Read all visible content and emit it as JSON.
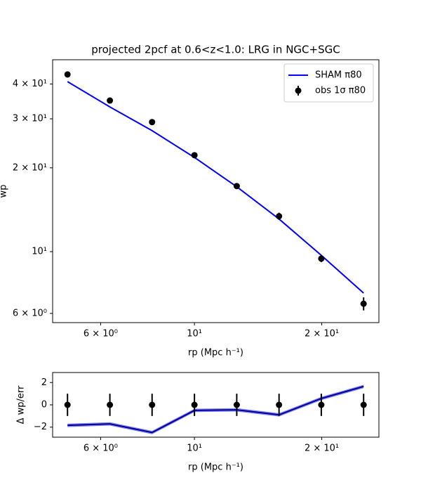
{
  "chart_data": [
    {
      "type": "errorbar",
      "title": "projected 2pcf at 0.6<z<1.0: LRG in NGC+SGC",
      "xlabel": "rp (Mpc h⁻¹)",
      "ylabel": "wp",
      "xlog": true,
      "ylog": true,
      "xlim": [
        4.62,
        27.3
      ],
      "ylim": [
        5.56,
        48.9
      ],
      "xticks": [
        {
          "value": 6,
          "label": "6 × 10⁰"
        },
        {
          "value": 10,
          "label": "10¹"
        },
        {
          "value": 20,
          "label": "2 × 10¹"
        }
      ],
      "yticks": [
        {
          "value": 6,
          "label": "6 × 10⁰"
        },
        {
          "value": 10,
          "label": "10¹"
        },
        {
          "value": 20,
          "label": "2 × 10¹"
        },
        {
          "value": 30,
          "label": "3 × 10¹"
        },
        {
          "value": 40,
          "label": "4 × 10¹"
        }
      ],
      "legend": "upper right",
      "x": [
        5.01,
        6.31,
        7.94,
        10,
        12.59,
        15.85,
        19.95,
        25.12
      ],
      "series": [
        {
          "name": "SHAM π80",
          "style": "line",
          "color": "#0000ff",
          "values": [
            40.8,
            33.1,
            27.2,
            21.8,
            17.1,
            13.1,
            9.7,
            7.1
          ]
        },
        {
          "name": "obs 1σ π80",
          "style": "errorbar",
          "color": "#000000",
          "values": [
            43.3,
            34.9,
            29.2,
            22.2,
            17.2,
            13.4,
            9.44,
            6.5
          ],
          "errors": [
            1.0,
            0.8,
            0.6,
            0.5,
            0.4,
            0.4,
            0.27,
            0.35
          ]
        }
      ]
    },
    {
      "type": "errorbar",
      "xlabel": "rp (Mpc h⁻¹)",
      "ylabel": "Δ wp/err",
      "xlog": true,
      "ylog": false,
      "xlim": [
        4.62,
        27.3
      ],
      "ylim": [
        -2.9,
        2.9
      ],
      "xticks": [
        {
          "value": 6,
          "label": "6 × 10⁰"
        },
        {
          "value": 10,
          "label": "10¹"
        },
        {
          "value": 20,
          "label": "2 × 10¹"
        }
      ],
      "yticks": [
        {
          "value": 2,
          "label": "2"
        },
        0,
        {
          "value": -2,
          "label": "−2"
        }
      ],
      "x": [
        5.01,
        6.31,
        7.94,
        10,
        12.59,
        15.85,
        19.95,
        25.12
      ],
      "series": [
        {
          "style": "band",
          "color": "#0000ff",
          "values": [
            -1.84,
            -1.71,
            -2.48,
            -0.5,
            -0.45,
            -0.9,
            0.57,
            1.65
          ],
          "errors": [
            0.15,
            0.15,
            0.15,
            0.15,
            0.15,
            0.15,
            0.15,
            0.15
          ]
        },
        {
          "style": "errorbar",
          "color": "#000000",
          "values": [
            0,
            0,
            0,
            0,
            0,
            0,
            0,
            0
          ],
          "errors": [
            1,
            1,
            1,
            1,
            1,
            1,
            1,
            1
          ]
        }
      ]
    }
  ]
}
